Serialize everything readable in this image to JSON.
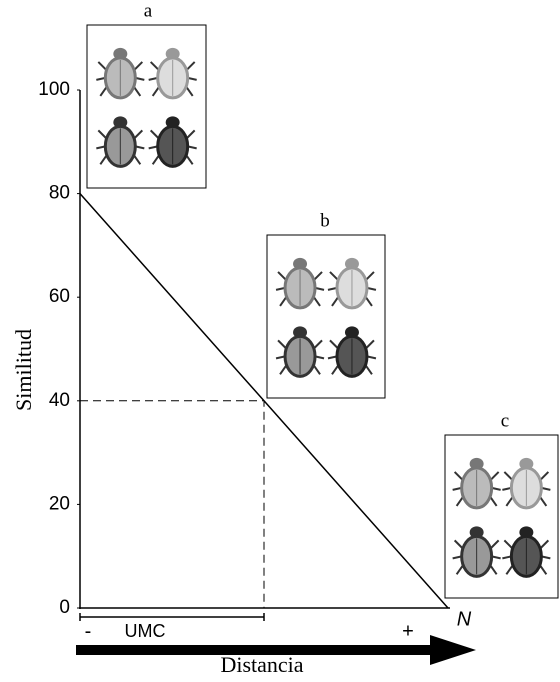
{
  "chart_data": {
    "type": "line",
    "x": [
      0,
      1
    ],
    "xlim": [
      0,
      1
    ],
    "ylim": [
      0,
      100
    ],
    "yticks": [
      0,
      20,
      40,
      60,
      80,
      100
    ],
    "grid": false,
    "series": [
      {
        "color": "#000000",
        "values": [
          80,
          0
        ]
      }
    ],
    "reference_y": 40,
    "ylabel": "Similitud",
    "xlabel": "Distancia",
    "x_end_label": "N",
    "interval_label": "UMC",
    "arrow_start_label": "-",
    "arrow_end_label": "+",
    "panels": [
      {
        "label": "a"
      },
      {
        "label": "b"
      },
      {
        "label": "c"
      }
    ]
  }
}
